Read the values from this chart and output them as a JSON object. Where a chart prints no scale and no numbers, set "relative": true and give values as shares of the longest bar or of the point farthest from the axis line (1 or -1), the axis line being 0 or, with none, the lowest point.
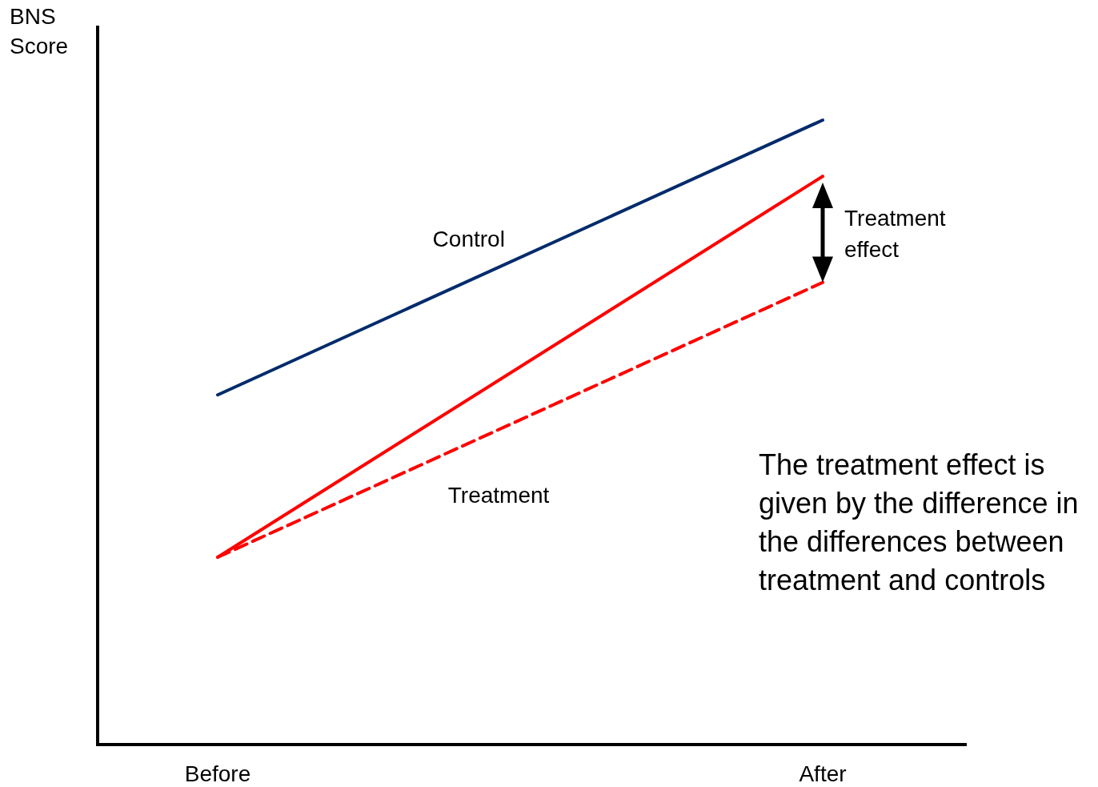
{
  "chart_data": {
    "type": "line",
    "ylabel": "BNS Score",
    "categories": [
      "Before",
      "After"
    ],
    "relative": true,
    "grid": false,
    "legend": false,
    "marker": "none",
    "series": [
      {
        "name": "Control",
        "color": "#002b6b",
        "values": [
          0.56,
          1
        ],
        "line_style": "solid"
      },
      {
        "name": "Treatment",
        "color": "#ff0000",
        "values": [
          0.3,
          0.91
        ],
        "line_style": "solid"
      },
      {
        "color": "#ff0000",
        "values": [
          0.3,
          0.74
        ],
        "line_style": "dashed"
      }
    ],
    "annotations": [
      "Treatment effect",
      "The treatment effect is given by the difference in the differences between treatment and controls"
    ]
  }
}
